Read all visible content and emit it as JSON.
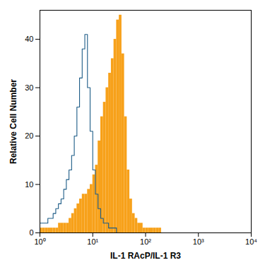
{
  "chart_data": {
    "type": "histogram",
    "x_label": "IL-1 RAcP/IL-1 R3",
    "y_label": "Relative Cell Number",
    "log": "x",
    "grid": false,
    "xlim": [
      1,
      10000
    ],
    "ylim": [
      0,
      46
    ],
    "xticks": [
      {
        "value": 1,
        "label": "10⁰"
      },
      {
        "value": 10,
        "label": "10¹"
      },
      {
        "value": 100,
        "label": "10²"
      },
      {
        "value": 1000,
        "label": "10³"
      },
      {
        "value": 10000,
        "label": "10⁴"
      }
    ],
    "yticks": [
      0,
      10,
      20,
      30,
      40
    ],
    "bins": [
      1,
      1.122,
      1.259,
      1.413,
      1.585,
      1.778,
      1.995,
      2.239,
      2.512,
      2.818,
      3.162,
      3.548,
      3.981,
      4.467,
      5.012,
      5.623,
      6.31,
      7.079,
      7.943,
      8.913,
      10,
      11.22,
      12.59,
      14.13,
      15.85,
      17.78,
      19.95,
      22.39,
      25.12,
      28.18,
      31.62,
      35.48,
      39.81,
      44.67,
      50.12,
      56.23,
      63.1,
      70.79,
      79.43,
      89.13,
      100,
      112.2,
      125.9,
      141.3,
      158.5,
      177.8,
      199.5
    ],
    "series": [
      {
        "type": "bar",
        "color": "#f7a11a",
        "values": [
          1,
          1,
          1,
          1,
          1,
          1,
          1,
          2,
          2,
          2,
          2,
          3,
          4,
          5,
          6,
          7,
          8,
          8,
          9,
          10,
          12,
          14,
          19,
          24,
          27,
          30,
          33,
          36,
          40,
          44,
          45,
          37,
          24,
          13,
          7,
          4,
          3,
          2,
          2,
          1,
          1,
          1,
          1,
          1,
          1,
          1
        ]
      },
      {
        "type": "line",
        "color": "#1d5c87",
        "values": [
          2,
          2,
          2,
          3,
          3,
          4,
          5,
          6,
          7,
          9,
          11,
          13,
          16,
          20,
          26,
          32,
          38,
          41,
          30,
          21,
          13,
          8,
          5,
          3,
          2,
          2,
          1,
          1,
          1,
          0,
          0,
          0,
          0,
          0,
          0,
          0,
          0,
          0,
          0,
          0,
          0,
          0,
          0,
          0,
          0,
          0
        ]
      }
    ]
  }
}
